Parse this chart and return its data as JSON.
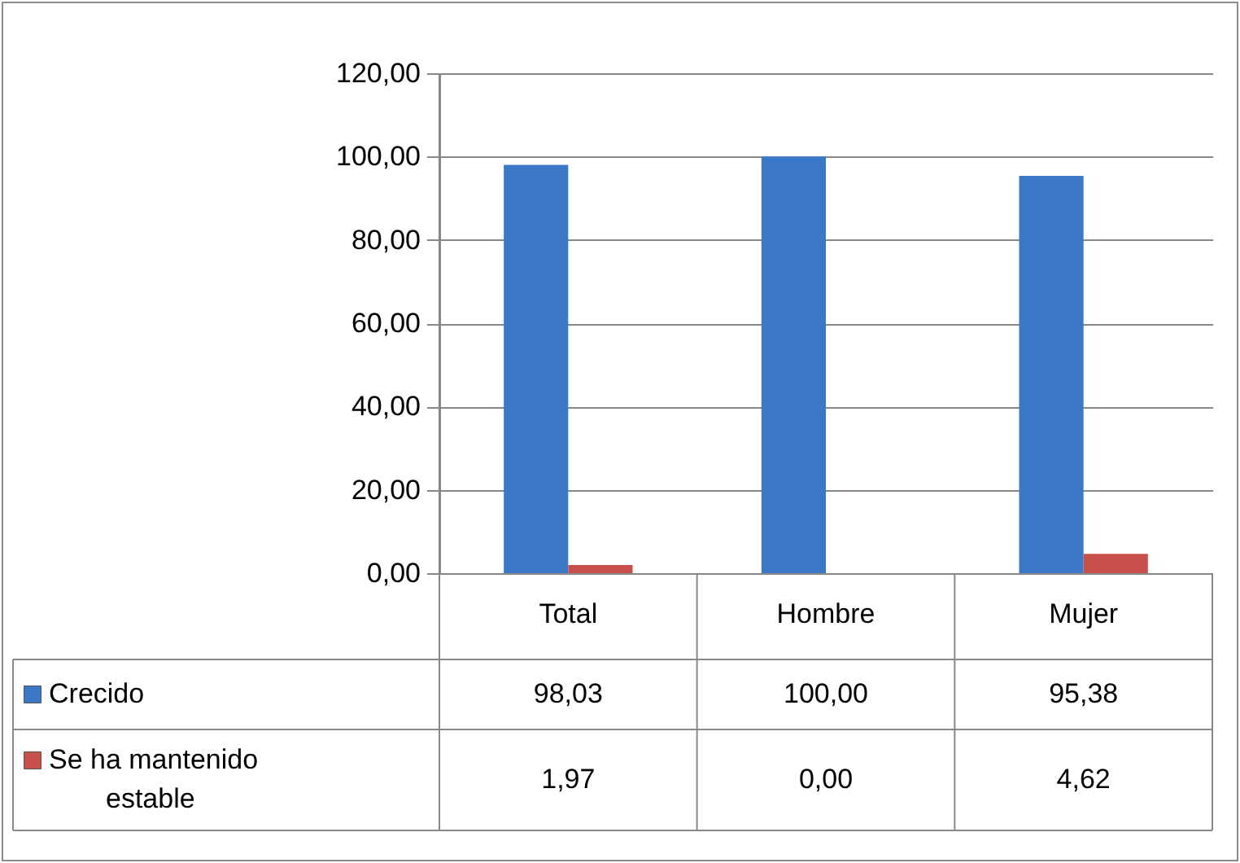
{
  "chart_data": {
    "type": "bar",
    "categories": [
      "Total",
      "Hombre",
      "Mujer"
    ],
    "series": [
      {
        "name": "Crecido",
        "color": "#3c78c8",
        "values": [
          98.03,
          100,
          95.38
        ],
        "value_labels": [
          "98,03",
          "100,00",
          "95,38"
        ]
      },
      {
        "name": "Se ha mantenido estable",
        "color": "#c8504c",
        "values": [
          1.97,
          0,
          4.62
        ],
        "value_labels": [
          "1,97",
          "0,00",
          "4,62"
        ]
      }
    ],
    "ylim": [
      0,
      120
    ],
    "yticks": [
      {
        "value": 0,
        "label": "0,00"
      },
      {
        "value": 20,
        "label": "20,00"
      },
      {
        "value": 40,
        "label": "40,00"
      },
      {
        "value": 60,
        "label": "60,00"
      },
      {
        "value": 80,
        "label": "80,00"
      },
      {
        "value": 100,
        "label": "100,00"
      },
      {
        "value": 120,
        "label": "120,00"
      }
    ],
    "grid": "y",
    "legend": "bottom left"
  }
}
